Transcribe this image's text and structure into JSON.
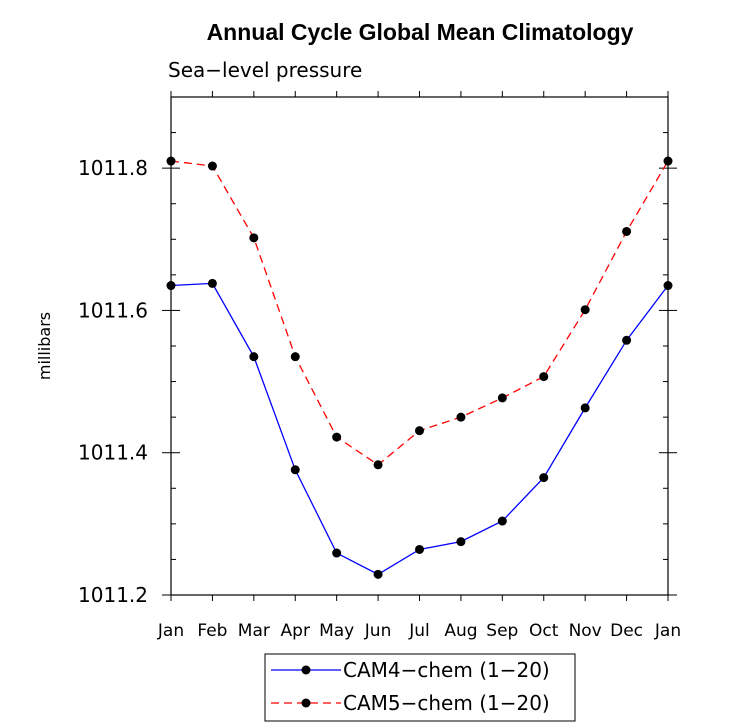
{
  "chart_data": {
    "type": "line",
    "title": "Annual Cycle Global Mean Climatology",
    "subtitle": "Sea−level pressure",
    "xlabel": "",
    "ylabel": "millibars",
    "categories": [
      "Jan",
      "Feb",
      "Mar",
      "Apr",
      "May",
      "Jun",
      "Jul",
      "Aug",
      "Sep",
      "Oct",
      "Nov",
      "Dec",
      "Jan"
    ],
    "ylim": [
      1011.2,
      1011.9
    ],
    "yticks": [
      1011.2,
      1011.4,
      1011.6,
      1011.8
    ],
    "ytick_labels": [
      "1011.2",
      "1011.4",
      "1011.6",
      "1011.8"
    ],
    "grid": false,
    "legend_position": "bottom",
    "series": [
      {
        "name": "CAM4−chem (1−20)",
        "color": "#0000ff",
        "line_style": "solid",
        "marker": "filled-circle",
        "values": [
          1011.635,
          1011.638,
          1011.535,
          1011.376,
          1011.259,
          1011.229,
          1011.264,
          1011.275,
          1011.304,
          1011.365,
          1011.463,
          1011.558,
          1011.635
        ]
      },
      {
        "name": "CAM5−chem (1−20)",
        "color": "#ff0000",
        "line_style": "dashed",
        "marker": "filled-circle",
        "values": [
          1011.81,
          1011.803,
          1011.702,
          1011.535,
          1011.422,
          1011.383,
          1011.431,
          1011.45,
          1011.477,
          1011.507,
          1011.601,
          1011.711,
          1011.81
        ]
      }
    ]
  }
}
